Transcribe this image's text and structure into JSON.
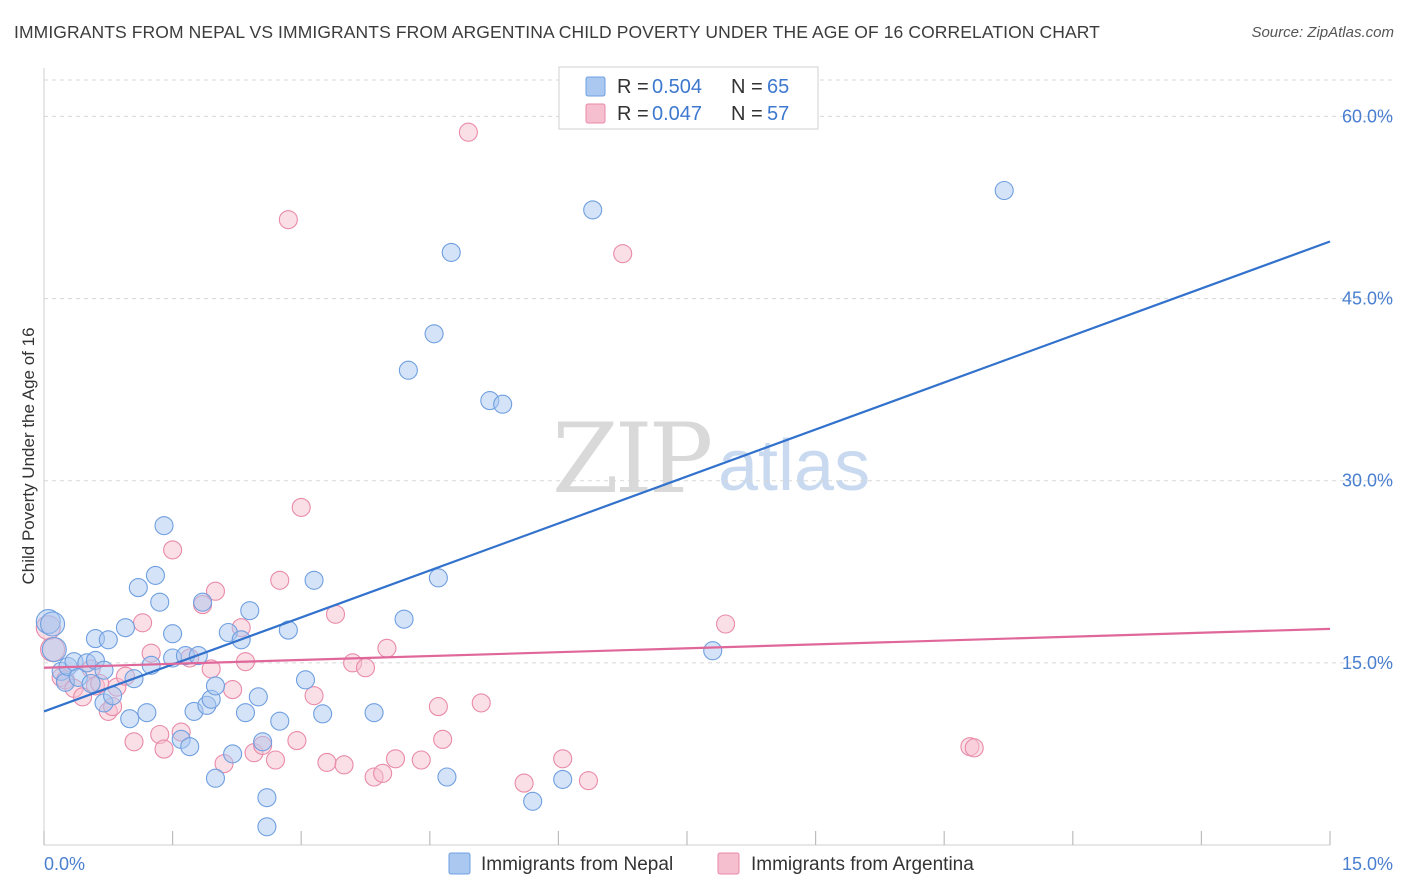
{
  "title": "IMMIGRANTS FROM NEPAL VS IMMIGRANTS FROM ARGENTINA CHILD POVERTY UNDER THE AGE OF 16 CORRELATION CHART",
  "source": "Source: ZipAtlas.com",
  "watermark": {
    "zip": "ZIP",
    "atlas": "atlas"
  },
  "colors": {
    "nepal_fill": "#aac8f0",
    "nepal_stroke": "#6f9fe0",
    "nepal_line": "#3272cc",
    "argentina_fill": "#f6bfd0",
    "argentina_stroke": "#e98aa8",
    "argentina_line": "#e0679a",
    "axis_label": "#4a7fd0",
    "grid": "#d8d8d8"
  },
  "legend": {
    "rows": [
      {
        "r_label": "R = ",
        "r_value": "0.504",
        "n_label": "N = ",
        "n_value": "65"
      },
      {
        "r_label": "R = ",
        "r_value": "0.047",
        "n_label": "N = ",
        "n_value": "57"
      }
    ]
  },
  "bottom_legend": [
    "Immigrants from Nepal",
    "Immigrants from Argentina"
  ],
  "chart_data": {
    "type": "scatter",
    "title": "IMMIGRANTS FROM NEPAL VS IMMIGRANTS FROM ARGENTINA CHILD POVERTY UNDER THE AGE OF 16 CORRELATION CHART",
    "xlabel": "",
    "ylabel": "Child Poverty Under the Age of 16",
    "xlim": [
      0,
      15
    ],
    "ylim": [
      0,
      63
    ],
    "x_tick_labels": [
      "0.0%",
      "15.0%"
    ],
    "y_ticks": [
      15,
      30,
      45,
      60
    ],
    "y_tick_labels": [
      "15.0%",
      "30.0%",
      "45.0%",
      "60.0%"
    ],
    "grid": true,
    "legend_position": "top-center",
    "series": [
      {
        "name": "Immigrants from Nepal",
        "r": 0.504,
        "n": 65,
        "trend": {
          "x": [
            0,
            15
          ],
          "y": [
            11.0,
            49.7
          ]
        },
        "points": [
          [
            0.05,
            18.4
          ],
          [
            0.1,
            18.2
          ],
          [
            0.12,
            16.1
          ],
          [
            0.2,
            14.3
          ],
          [
            0.25,
            13.4
          ],
          [
            0.28,
            14.7
          ],
          [
            0.35,
            15.1
          ],
          [
            0.4,
            13.8
          ],
          [
            0.5,
            15.0
          ],
          [
            0.55,
            13.3
          ],
          [
            0.6,
            17.0
          ],
          [
            0.6,
            15.2
          ],
          [
            0.7,
            14.4
          ],
          [
            0.7,
            11.7
          ],
          [
            0.75,
            16.9
          ],
          [
            0.8,
            12.3
          ],
          [
            0.95,
            17.9
          ],
          [
            1.0,
            10.4
          ],
          [
            1.05,
            13.7
          ],
          [
            1.1,
            21.2
          ],
          [
            1.2,
            10.9
          ],
          [
            1.25,
            14.8
          ],
          [
            1.3,
            22.2
          ],
          [
            1.35,
            20.0
          ],
          [
            1.4,
            26.3
          ],
          [
            1.5,
            15.4
          ],
          [
            1.5,
            17.4
          ],
          [
            1.6,
            8.7
          ],
          [
            1.65,
            15.6
          ],
          [
            1.7,
            8.1
          ],
          [
            1.75,
            11.0
          ],
          [
            1.8,
            15.6
          ],
          [
            1.85,
            20.0
          ],
          [
            1.9,
            11.5
          ],
          [
            1.95,
            12.0
          ],
          [
            2.0,
            13.1
          ],
          [
            2.0,
            5.5
          ],
          [
            2.15,
            17.5
          ],
          [
            2.2,
            7.5
          ],
          [
            2.3,
            16.9
          ],
          [
            2.35,
            10.9
          ],
          [
            2.4,
            19.3
          ],
          [
            2.5,
            12.2
          ],
          [
            2.55,
            8.5
          ],
          [
            2.6,
            3.9
          ],
          [
            2.6,
            1.5
          ],
          [
            2.75,
            10.2
          ],
          [
            2.85,
            17.7
          ],
          [
            3.05,
            13.6
          ],
          [
            3.15,
            21.8
          ],
          [
            3.25,
            10.8
          ],
          [
            3.85,
            10.9
          ],
          [
            4.2,
            18.6
          ],
          [
            4.25,
            39.1
          ],
          [
            4.55,
            42.1
          ],
          [
            4.6,
            22.0
          ],
          [
            4.7,
            5.6
          ],
          [
            4.75,
            48.8
          ],
          [
            5.2,
            36.6
          ],
          [
            5.35,
            36.3
          ],
          [
            5.7,
            3.6
          ],
          [
            6.05,
            5.4
          ],
          [
            6.4,
            52.3
          ],
          [
            7.8,
            16.0
          ],
          [
            11.2,
            53.9
          ]
        ]
      },
      {
        "name": "Immigrants from Argentina",
        "r": 0.047,
        "n": 57,
        "trend": {
          "x": [
            0,
            15
          ],
          "y": [
            14.6,
            17.8
          ]
        },
        "points": [
          [
            0.05,
            17.9
          ],
          [
            0.1,
            16.1
          ],
          [
            0.2,
            13.8
          ],
          [
            0.25,
            13.6
          ],
          [
            0.35,
            12.9
          ],
          [
            0.45,
            12.2
          ],
          [
            0.55,
            14.5
          ],
          [
            0.6,
            13.1
          ],
          [
            0.65,
            13.3
          ],
          [
            0.75,
            11.0
          ],
          [
            0.8,
            11.4
          ],
          [
            0.85,
            13.0
          ],
          [
            0.95,
            13.9
          ],
          [
            1.05,
            8.5
          ],
          [
            1.15,
            18.3
          ],
          [
            1.25,
            15.8
          ],
          [
            1.35,
            9.1
          ],
          [
            1.4,
            7.9
          ],
          [
            1.5,
            24.3
          ],
          [
            1.6,
            9.3
          ],
          [
            1.7,
            15.4
          ],
          [
            1.85,
            19.8
          ],
          [
            1.95,
            14.5
          ],
          [
            2.0,
            20.9
          ],
          [
            2.1,
            6.7
          ],
          [
            2.2,
            12.8
          ],
          [
            2.3,
            17.9
          ],
          [
            2.35,
            15.1
          ],
          [
            2.45,
            7.6
          ],
          [
            2.55,
            8.2
          ],
          [
            2.7,
            7.0
          ],
          [
            2.75,
            21.8
          ],
          [
            2.85,
            51.5
          ],
          [
            2.95,
            8.6
          ],
          [
            3.0,
            27.8
          ],
          [
            3.15,
            12.3
          ],
          [
            3.3,
            6.8
          ],
          [
            3.4,
            19.0
          ],
          [
            3.5,
            6.6
          ],
          [
            3.6,
            15.0
          ],
          [
            3.75,
            14.6
          ],
          [
            3.85,
            5.6
          ],
          [
            3.95,
            5.9
          ],
          [
            4.0,
            16.2
          ],
          [
            4.1,
            7.1
          ],
          [
            4.4,
            7.0
          ],
          [
            4.6,
            11.4
          ],
          [
            4.65,
            8.7
          ],
          [
            4.95,
            58.7
          ],
          [
            5.1,
            11.7
          ],
          [
            5.6,
            5.1
          ],
          [
            6.05,
            7.1
          ],
          [
            6.35,
            5.3
          ],
          [
            6.75,
            48.7
          ],
          [
            7.95,
            18.2
          ],
          [
            10.8,
            8.1
          ],
          [
            10.85,
            8.0
          ]
        ]
      }
    ]
  }
}
